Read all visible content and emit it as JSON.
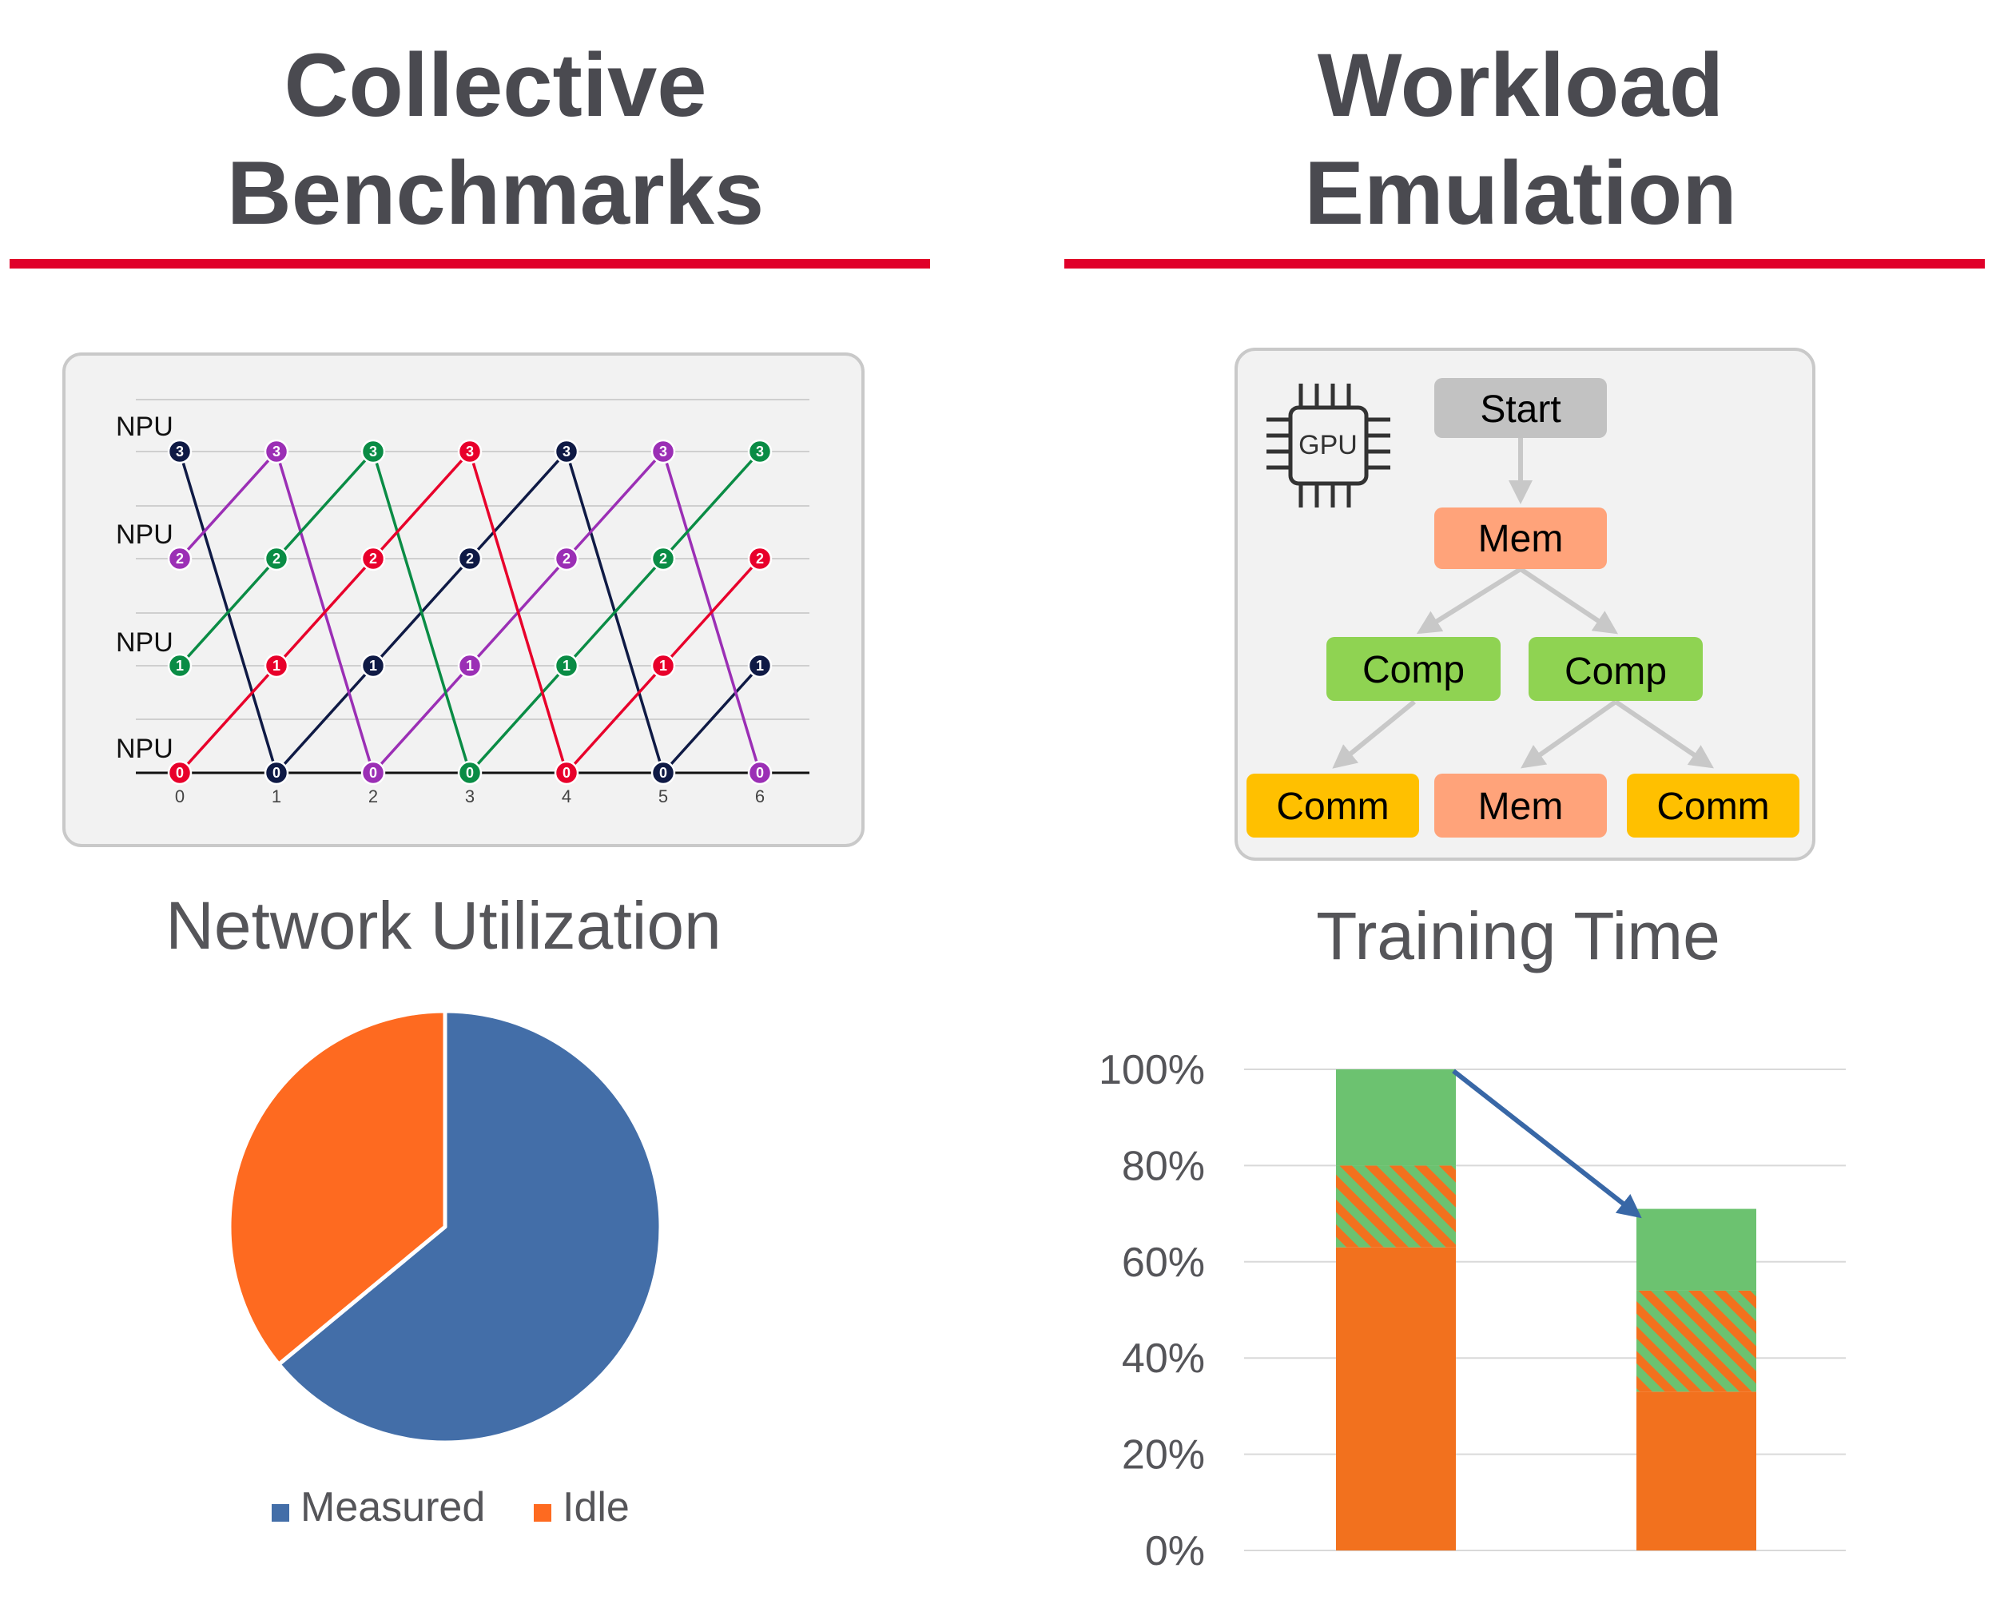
{
  "left": {
    "title_line1": "Collective",
    "title_line2": "Benchmarks",
    "panel": {
      "npu_labels": [
        "NPU",
        "NPU",
        "NPU",
        "NPU"
      ],
      "x_ticks": [
        "0",
        "1",
        "2",
        "3",
        "4",
        "5",
        "6"
      ],
      "colors": {
        "3": "#0f1a45",
        "2": "#9b2fb5",
        "1": "#0a8c45",
        "0": "#e8002b"
      },
      "paths": [
        [
          3,
          0,
          1,
          2,
          3,
          0,
          1
        ],
        [
          2,
          3,
          0,
          1,
          2,
          3,
          0
        ],
        [
          1,
          2,
          3,
          0,
          1,
          2,
          3
        ],
        [
          0,
          1,
          2,
          3,
          0,
          1,
          2
        ]
      ]
    },
    "subtitle": "Network Utilization"
  },
  "right": {
    "title_line1": "Workload",
    "title_line2": "Emulation",
    "panel": {
      "gpu_label": "GPU",
      "nodes": {
        "start": "Start",
        "mem_top": "Mem",
        "comp_left": "Comp",
        "comp_right": "Comp",
        "comm_left": "Comm",
        "mem_bottom": "Mem",
        "comm_right": "Comm"
      },
      "colors": {
        "start": "#c2c2c2",
        "mem": "#ffa37a",
        "comp": "#8fd352",
        "comm": "#ffc000",
        "panel_bg": "#f2f2f2",
        "arrow": "#c8c8c8"
      }
    },
    "subtitle": "Training Time"
  },
  "accent_color": "#e0002a",
  "chart_data": [
    {
      "type": "pie",
      "title": "Network Utilization",
      "slices": [
        {
          "name": "Measured",
          "value": 64,
          "color": "#436ea8"
        },
        {
          "name": "Idle",
          "value": 36,
          "color": "#fe6a20"
        }
      ],
      "legend": {
        "placement": "bottom",
        "entries": [
          "Measured",
          "Idle"
        ]
      }
    },
    {
      "type": "bar",
      "stacked": true,
      "title": "Training Time",
      "categories": [
        "",
        ""
      ],
      "yticks": [
        "0%",
        "20%",
        "40%",
        "60%",
        "80%",
        "100%"
      ],
      "ylim": [
        0,
        100
      ],
      "grid": true,
      "series": [
        {
          "values": [
            63,
            33
          ],
          "color": "#f2711e",
          "pattern": "solid"
        },
        {
          "values": [
            17,
            21
          ],
          "color": "#f2711e",
          "pattern": "hatched"
        },
        {
          "values": [
            20,
            17
          ],
          "color": "#6cc270",
          "pattern": "solid"
        }
      ],
      "annotation": {
        "type": "arrow",
        "from_bar": 0,
        "to_bar": 1,
        "color": "#3867a6"
      }
    }
  ]
}
